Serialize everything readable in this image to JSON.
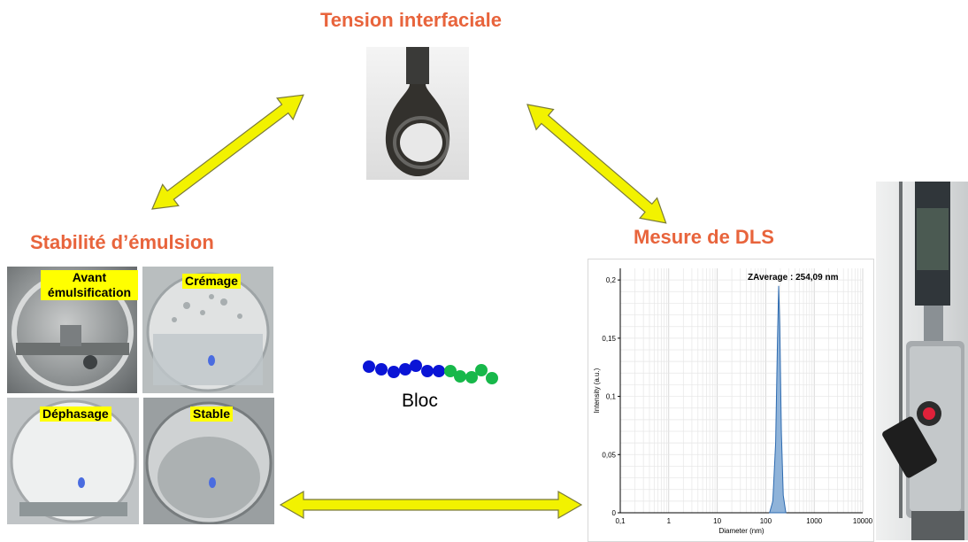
{
  "titles": {
    "tension": "Tension interfaciale",
    "stabilite": "Stabilité d’émulsion",
    "dls": "Mesure de DLS"
  },
  "emulsion_panels": [
    {
      "label": "Avant émulsification"
    },
    {
      "label": "Crémage"
    },
    {
      "label": "Déphasage"
    },
    {
      "label": "Stable"
    }
  ],
  "bloc_label": "Bloc",
  "chain_colors": {
    "blue": "#0a14d6",
    "green": "#17b84a"
  },
  "arrow_color": "#f2f200",
  "chart_data": {
    "type": "area",
    "annotation": "ZAverage : 254,09 nm",
    "xlabel": "Diameter (nm)",
    "ylabel": "Intensity (a.u.)",
    "xscale": "log",
    "xlim": [
      0.1,
      10000
    ],
    "ylim": [
      0,
      0.21
    ],
    "xticks": [
      "0,1",
      "1",
      "10",
      "100",
      "1000",
      "10000"
    ],
    "yticks": [
      "0",
      "0,05",
      "0,1",
      "0,15",
      "0,2"
    ],
    "grid": true,
    "x": [
      120,
      140,
      160,
      175,
      185,
      195,
      210,
      230,
      260
    ],
    "values": [
      0,
      0.01,
      0.06,
      0.15,
      0.195,
      0.16,
      0.07,
      0.015,
      0
    ]
  }
}
